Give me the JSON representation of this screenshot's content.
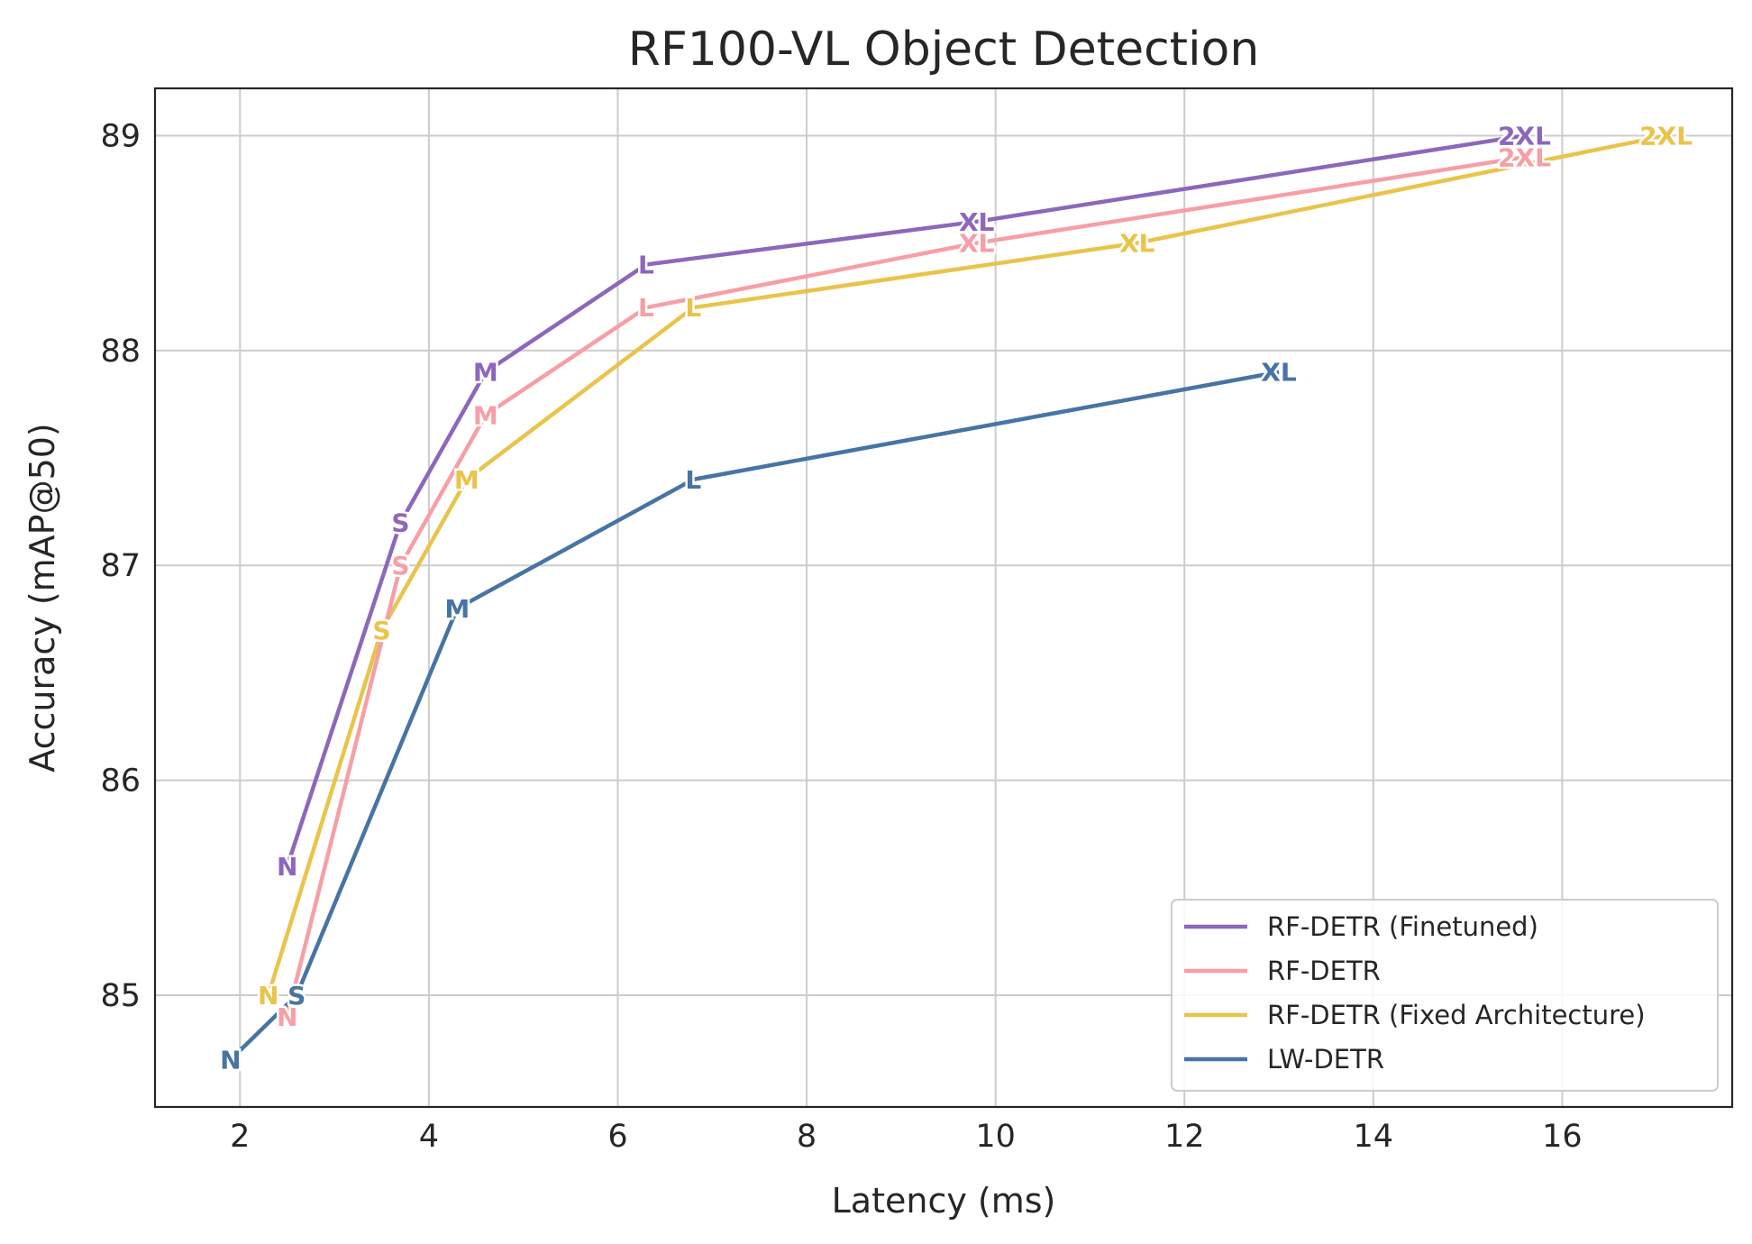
{
  "chart_data": {
    "type": "line",
    "title": "RF100-VL Object Detection",
    "xlabel": "Latency (ms)",
    "ylabel": "Accuracy (mAP@50)",
    "xlim": [
      1.1,
      17.8
    ],
    "ylim": [
      84.48,
      89.22
    ],
    "xticks": [
      2,
      4,
      6,
      8,
      10,
      12,
      14,
      16
    ],
    "yticks": [
      85,
      86,
      87,
      88,
      89
    ],
    "grid": true,
    "legend_position": "lower right",
    "series": [
      {
        "name": "RF-DETR (Finetuned)",
        "color": "#8c67bb",
        "points": [
          {
            "label": "N",
            "x": 2.5,
            "y": 85.6
          },
          {
            "label": "S",
            "x": 3.7,
            "y": 87.2
          },
          {
            "label": "M",
            "x": 4.6,
            "y": 87.9
          },
          {
            "label": "L",
            "x": 6.3,
            "y": 88.4
          },
          {
            "label": "XL",
            "x": 9.8,
            "y": 88.6
          },
          {
            "label": "2XL",
            "x": 15.6,
            "y": 89.0
          }
        ]
      },
      {
        "name": "RF-DETR",
        "color": "#f79ea6",
        "points": [
          {
            "label": "N",
            "x": 2.5,
            "y": 84.9
          },
          {
            "label": "S",
            "x": 3.7,
            "y": 87.0
          },
          {
            "label": "M",
            "x": 4.6,
            "y": 87.7
          },
          {
            "label": "L",
            "x": 6.3,
            "y": 88.2
          },
          {
            "label": "XL",
            "x": 9.8,
            "y": 88.5
          },
          {
            "label": "2XL",
            "x": 15.6,
            "y": 88.9
          }
        ]
      },
      {
        "name": "RF-DETR (Fixed Architecture)",
        "color": "#e9c44b",
        "points": [
          {
            "label": "N",
            "x": 2.3,
            "y": 85.0
          },
          {
            "label": "S",
            "x": 3.5,
            "y": 86.7
          },
          {
            "label": "M",
            "x": 4.4,
            "y": 87.4
          },
          {
            "label": "L",
            "x": 6.8,
            "y": 88.2
          },
          {
            "label": "XL",
            "x": 11.5,
            "y": 88.5
          },
          {
            "label": "2XL",
            "x": 17.1,
            "y": 89.0
          }
        ]
      },
      {
        "name": "LW-DETR",
        "color": "#4774a4",
        "points": [
          {
            "label": "N",
            "x": 1.9,
            "y": 84.7
          },
          {
            "label": "S",
            "x": 2.6,
            "y": 85.0
          },
          {
            "label": "M",
            "x": 4.3,
            "y": 86.8
          },
          {
            "label": "L",
            "x": 6.8,
            "y": 87.4
          },
          {
            "label": "XL",
            "x": 13.0,
            "y": 87.9
          }
        ]
      }
    ]
  }
}
